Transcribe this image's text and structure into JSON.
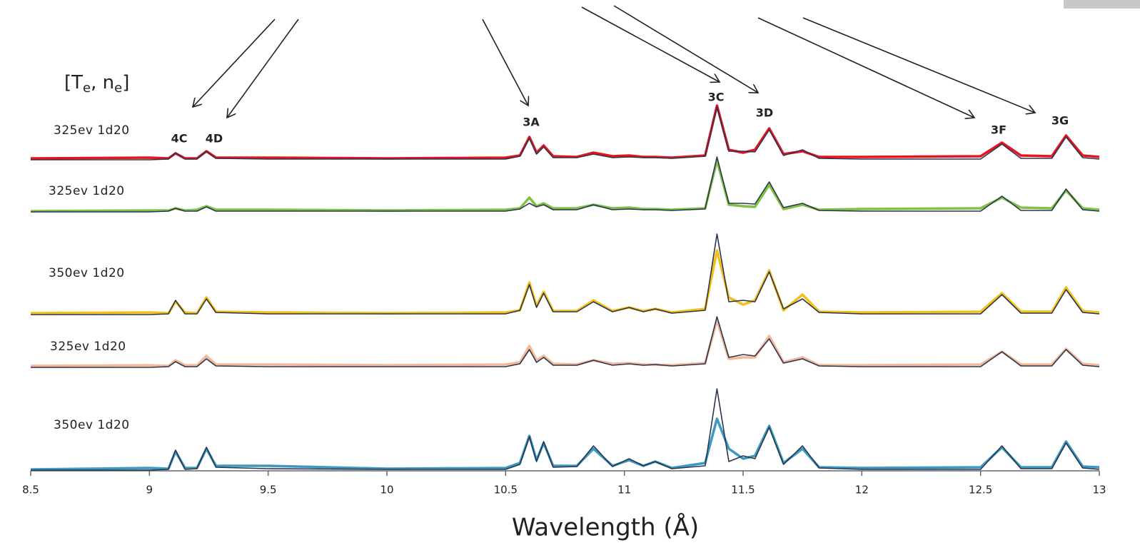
{
  "chart_data": {
    "type": "line",
    "header": {
      "open": "[T",
      "sub1": "e",
      "mid": ", n",
      "sub2": "e",
      "close": "]"
    },
    "x_label": "Wavelength (Å)",
    "annotations": [
      "4C",
      "4D",
      "3A",
      "3C",
      "3D",
      "3F",
      "3G"
    ],
    "xlim": [
      8.5,
      13
    ],
    "xticks": [
      8.5,
      9,
      9.5,
      10,
      10.5,
      11,
      11.5,
      12,
      12.5,
      13
    ],
    "x": [
      8.5,
      9.0,
      9.08,
      9.11,
      9.15,
      9.2,
      9.24,
      9.28,
      9.5,
      10.0,
      10.5,
      10.56,
      10.6,
      10.63,
      10.66,
      10.7,
      10.8,
      10.87,
      10.95,
      11.02,
      11.08,
      11.13,
      11.2,
      11.34,
      11.39,
      11.44,
      11.5,
      11.55,
      11.61,
      11.67,
      11.75,
      11.82,
      12.0,
      12.5,
      12.59,
      12.67,
      12.8,
      12.86,
      12.93,
      13.0
    ],
    "series": [
      {
        "name": "325ev 1d20",
        "color": "#e8141c",
        "values": [
          0.02,
          0.03,
          0.02,
          0.09,
          0.02,
          0.02,
          0.12,
          0.03,
          0.03,
          0.02,
          0.03,
          0.06,
          0.32,
          0.1,
          0.2,
          0.05,
          0.04,
          0.1,
          0.05,
          0.06,
          0.04,
          0.04,
          0.03,
          0.06,
          0.76,
          0.14,
          0.1,
          0.14,
          0.44,
          0.08,
          0.12,
          0.04,
          0.04,
          0.05,
          0.24,
          0.06,
          0.05,
          0.34,
          0.06,
          0.04
        ]
      },
      {
        "name": "325ev 1d20",
        "color": "#7dc242",
        "values": [
          0.01,
          0.02,
          0.02,
          0.05,
          0.02,
          0.03,
          0.08,
          0.03,
          0.03,
          0.02,
          0.03,
          0.05,
          0.2,
          0.08,
          0.12,
          0.05,
          0.05,
          0.1,
          0.05,
          0.06,
          0.04,
          0.04,
          0.03,
          0.05,
          0.72,
          0.1,
          0.08,
          0.07,
          0.38,
          0.04,
          0.1,
          0.03,
          0.04,
          0.05,
          0.2,
          0.06,
          0.05,
          0.3,
          0.05,
          0.03
        ]
      },
      {
        "name": "350ev 1d20",
        "color": "#f5c016",
        "values": [
          0.02,
          0.03,
          0.02,
          0.18,
          0.03,
          0.02,
          0.24,
          0.04,
          0.03,
          0.02,
          0.03,
          0.06,
          0.45,
          0.12,
          0.32,
          0.05,
          0.05,
          0.2,
          0.05,
          0.1,
          0.05,
          0.08,
          0.03,
          0.08,
          0.9,
          0.24,
          0.14,
          0.2,
          0.62,
          0.06,
          0.28,
          0.04,
          0.03,
          0.04,
          0.3,
          0.04,
          0.04,
          0.38,
          0.05,
          0.03
        ]
      },
      {
        "name": "325ev 1d20",
        "color": "#f5b896",
        "values": [
          0.02,
          0.03,
          0.02,
          0.1,
          0.03,
          0.03,
          0.16,
          0.04,
          0.04,
          0.03,
          0.04,
          0.07,
          0.3,
          0.1,
          0.16,
          0.05,
          0.04,
          0.1,
          0.05,
          0.06,
          0.04,
          0.04,
          0.03,
          0.06,
          0.66,
          0.12,
          0.14,
          0.14,
          0.44,
          0.07,
          0.14,
          0.03,
          0.03,
          0.04,
          0.22,
          0.04,
          0.04,
          0.26,
          0.05,
          0.03
        ]
      },
      {
        "name": "350ev 1d20",
        "color": "#3b9ac0",
        "values": [
          0.01,
          0.03,
          0.02,
          0.26,
          0.03,
          0.03,
          0.3,
          0.06,
          0.06,
          0.02,
          0.03,
          0.1,
          0.48,
          0.14,
          0.38,
          0.06,
          0.06,
          0.3,
          0.06,
          0.14,
          0.06,
          0.12,
          0.03,
          0.1,
          0.72,
          0.3,
          0.16,
          0.2,
          0.62,
          0.1,
          0.3,
          0.04,
          0.03,
          0.04,
          0.32,
          0.04,
          0.04,
          0.4,
          0.05,
          0.04
        ]
      }
    ],
    "model_color": "#2b3550",
    "models": [
      [
        0,
        0,
        0.01,
        0.1,
        0.01,
        0.01,
        0.12,
        0.02,
        0.01,
        0.01,
        0.01,
        0.05,
        0.3,
        0.08,
        0.18,
        0.03,
        0.03,
        0.08,
        0.03,
        0.04,
        0.03,
        0.03,
        0.02,
        0.05,
        0.74,
        0.12,
        0.12,
        0.11,
        0.42,
        0.06,
        0.14,
        0.02,
        0.01,
        0.01,
        0.22,
        0.02,
        0.02,
        0.32,
        0.03,
        0.01
      ],
      [
        0,
        0,
        0.01,
        0.05,
        0.01,
        0.01,
        0.07,
        0.01,
        0.01,
        0.01,
        0.01,
        0.04,
        0.12,
        0.07,
        0.1,
        0.03,
        0.03,
        0.1,
        0.03,
        0.04,
        0.03,
        0.03,
        0.02,
        0.04,
        0.77,
        0.12,
        0.12,
        0.11,
        0.42,
        0.06,
        0.12,
        0.02,
        0.01,
        0.01,
        0.22,
        0.02,
        0.02,
        0.32,
        0.03,
        0.01
      ],
      [
        0,
        0,
        0.01,
        0.2,
        0.01,
        0.01,
        0.22,
        0.03,
        0.01,
        0.01,
        0.01,
        0.06,
        0.42,
        0.1,
        0.3,
        0.04,
        0.04,
        0.18,
        0.04,
        0.1,
        0.04,
        0.08,
        0.02,
        0.06,
        1.13,
        0.18,
        0.2,
        0.18,
        0.6,
        0.08,
        0.22,
        0.03,
        0.01,
        0.01,
        0.28,
        0.02,
        0.02,
        0.35,
        0.03,
        0.01
      ],
      [
        0,
        0,
        0.01,
        0.08,
        0.01,
        0.01,
        0.12,
        0.02,
        0.01,
        0.01,
        0.01,
        0.05,
        0.25,
        0.07,
        0.14,
        0.03,
        0.03,
        0.1,
        0.03,
        0.05,
        0.03,
        0.04,
        0.02,
        0.05,
        0.71,
        0.14,
        0.18,
        0.16,
        0.4,
        0.06,
        0.12,
        0.02,
        0.01,
        0.01,
        0.22,
        0.02,
        0.02,
        0.25,
        0.03,
        0.01
      ],
      [
        0,
        0,
        0.01,
        0.28,
        0.01,
        0.02,
        0.32,
        0.04,
        0.02,
        0.01,
        0.01,
        0.08,
        0.47,
        0.12,
        0.4,
        0.04,
        0.05,
        0.34,
        0.05,
        0.16,
        0.06,
        0.12,
        0.02,
        0.06,
        1.14,
        0.12,
        0.2,
        0.16,
        0.6,
        0.08,
        0.34,
        0.03,
        0.01,
        0.01,
        0.34,
        0.02,
        0.02,
        0.38,
        0.03,
        0.01
      ]
    ]
  }
}
